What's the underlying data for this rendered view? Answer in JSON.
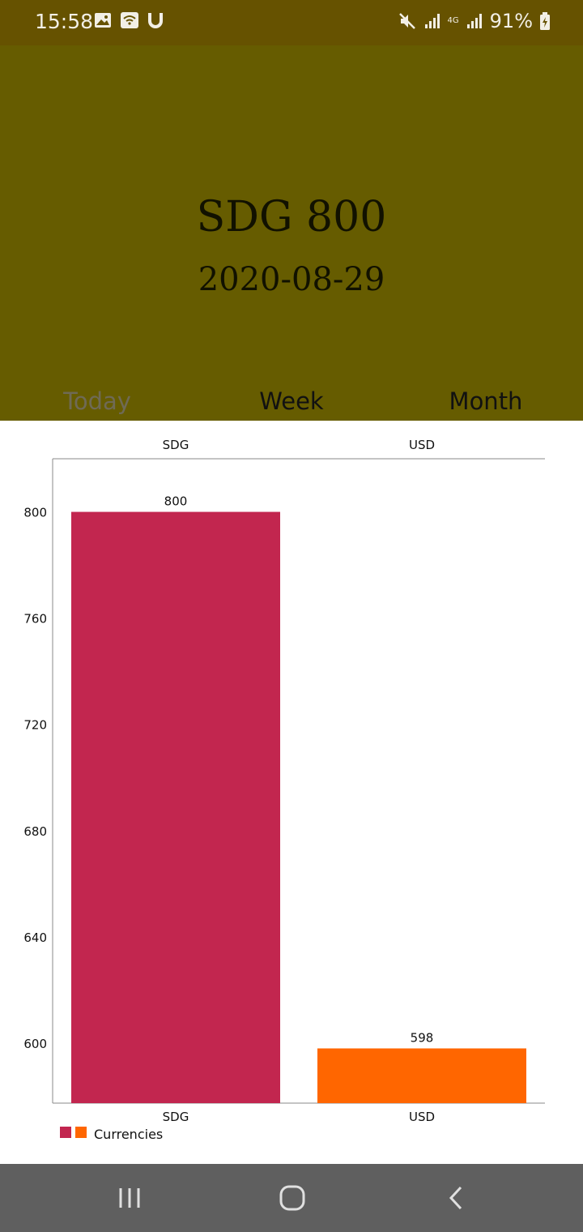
{
  "status_bar": {
    "time": "15:58",
    "battery": "91%",
    "network": "4G"
  },
  "header": {
    "amount": "SDG 800",
    "date": "2020-08-29"
  },
  "tabs": [
    {
      "label": "Today",
      "active": true
    },
    {
      "label": "Week",
      "active": false
    },
    {
      "label": "Month",
      "active": false
    }
  ],
  "chart_data": {
    "type": "bar",
    "categories": [
      "SDG",
      "USD"
    ],
    "series": [
      {
        "name": "Currencies",
        "values": [
          800,
          598
        ]
      }
    ],
    "data_labels": [
      "800",
      "598"
    ],
    "ylim": [
      577.4,
      820
    ],
    "yticks": [
      600,
      640,
      680,
      720,
      760,
      800
    ],
    "colors": [
      "#c2264f",
      "#ff6600"
    ],
    "legend": {
      "position": "bottom-left",
      "label": "Currencies"
    },
    "grid": false
  },
  "colors": {
    "status_bar": "#665200",
    "header": "#665c00",
    "nav_bar": "#5f5f5f"
  }
}
